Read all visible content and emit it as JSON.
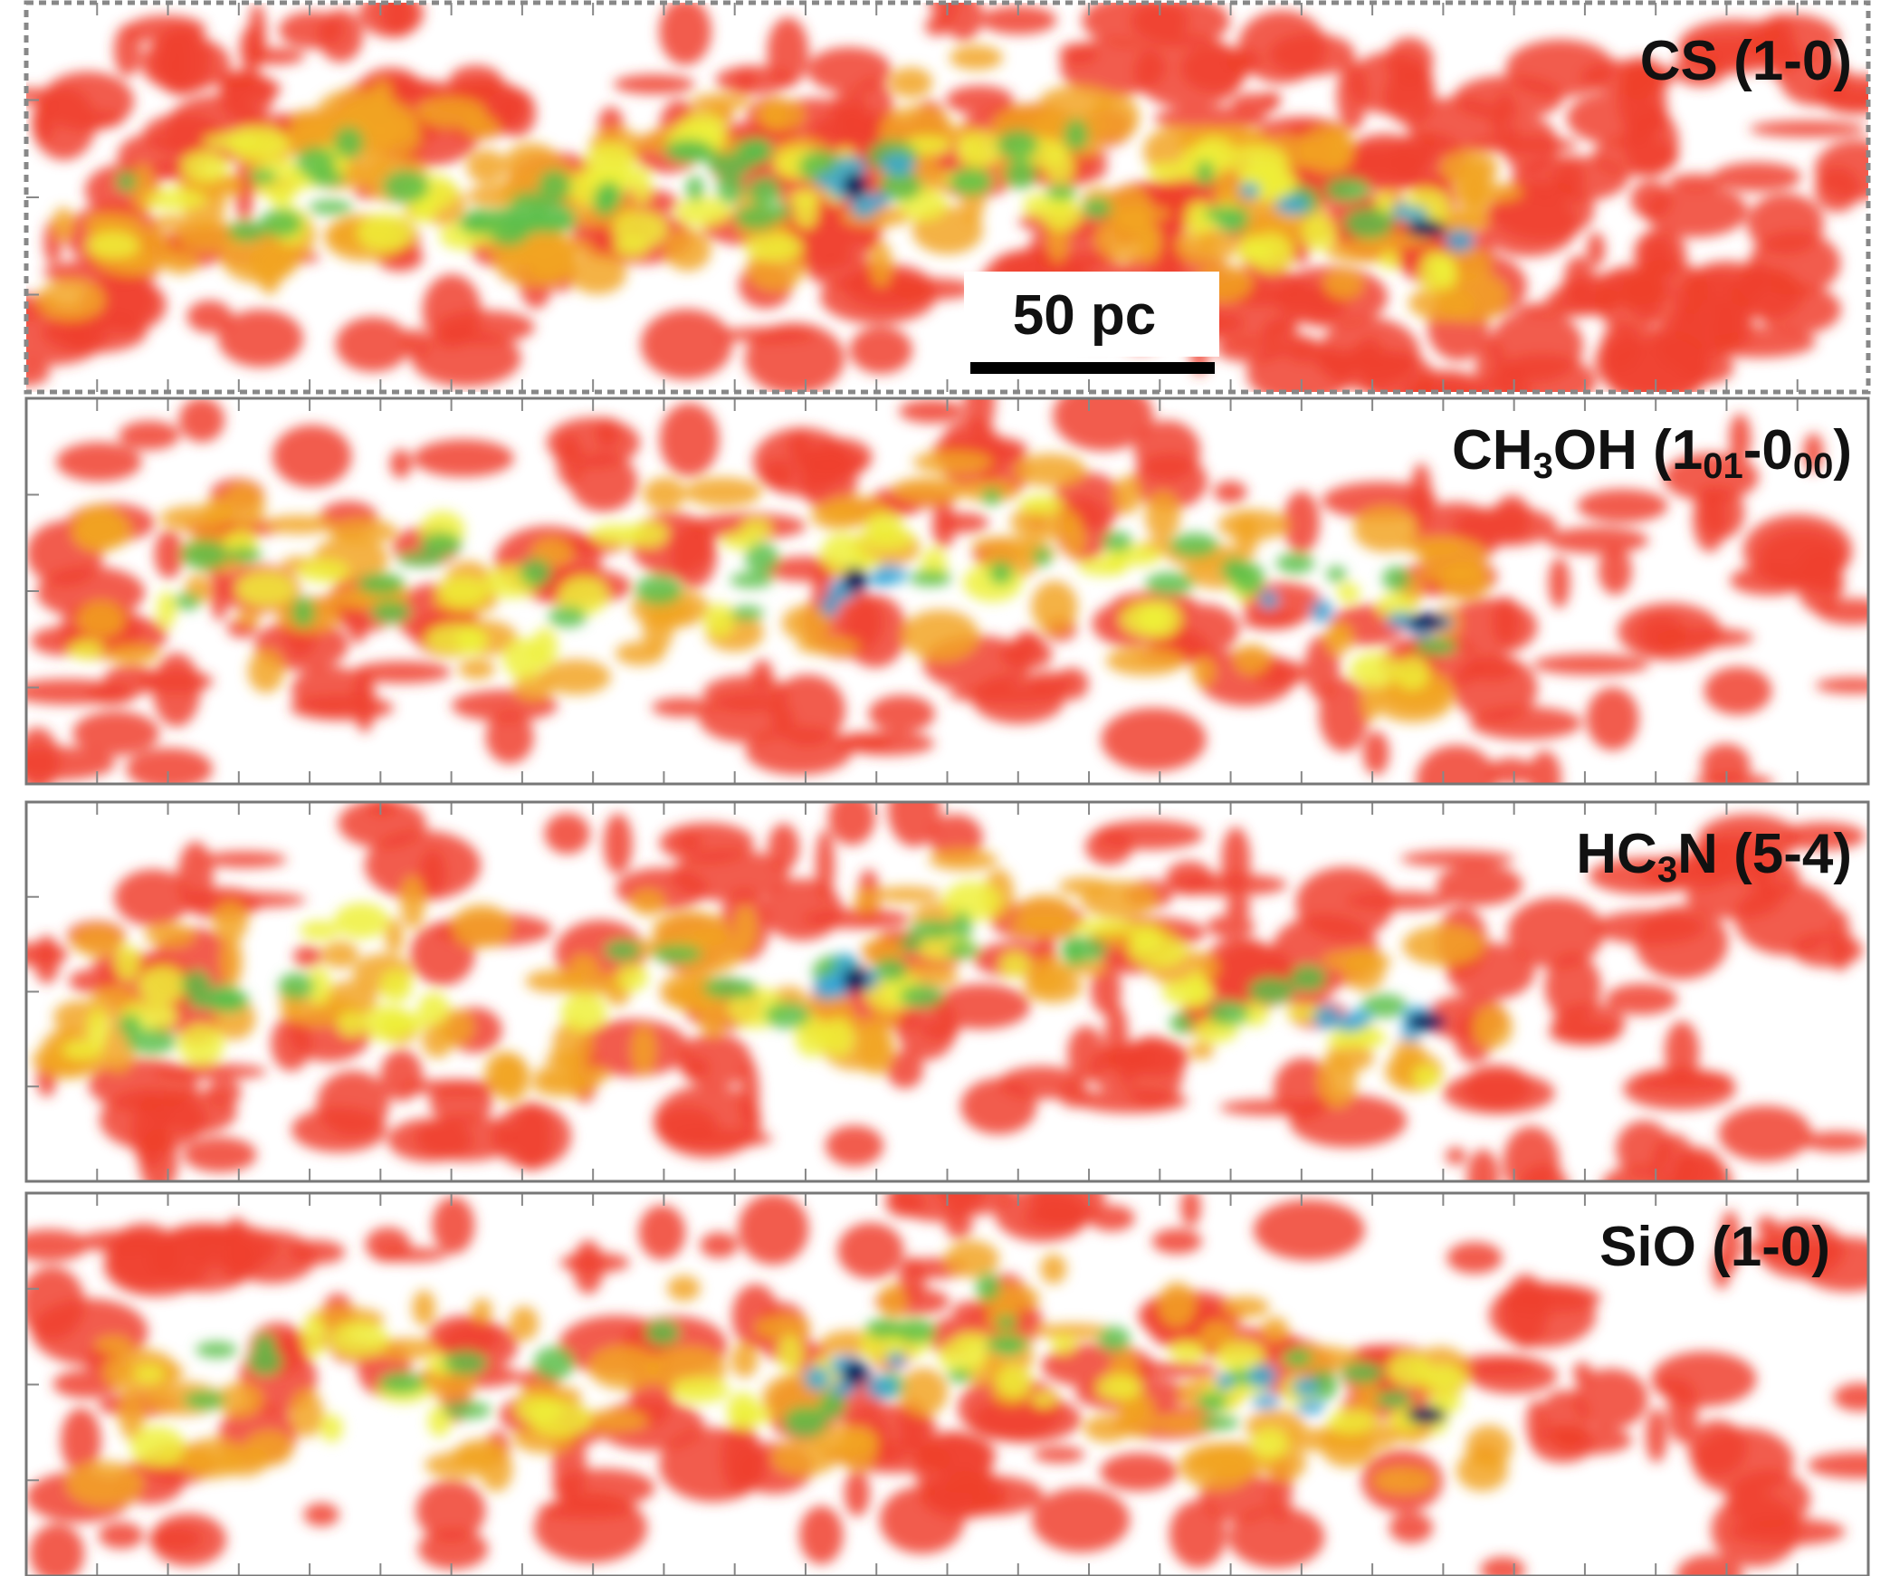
{
  "panels": [
    {
      "label": [
        {
          "text": "CS (1-0)"
        }
      ]
    },
    {
      "label": [
        {
          "text": "CH"
        },
        {
          "sub": "3"
        },
        {
          "text": "OH (1"
        },
        {
          "sub": "01"
        },
        {
          "text": "-0"
        },
        {
          "sub": "00"
        },
        {
          "text": ")"
        }
      ]
    },
    {
      "label": [
        {
          "text": "HC"
        },
        {
          "sub": "3"
        },
        {
          "text": "N (5-4)"
        }
      ]
    },
    {
      "label": [
        {
          "text": "SiO (1-0)"
        }
      ]
    }
  ],
  "scale_bar": {
    "label": "50 pc"
  }
}
